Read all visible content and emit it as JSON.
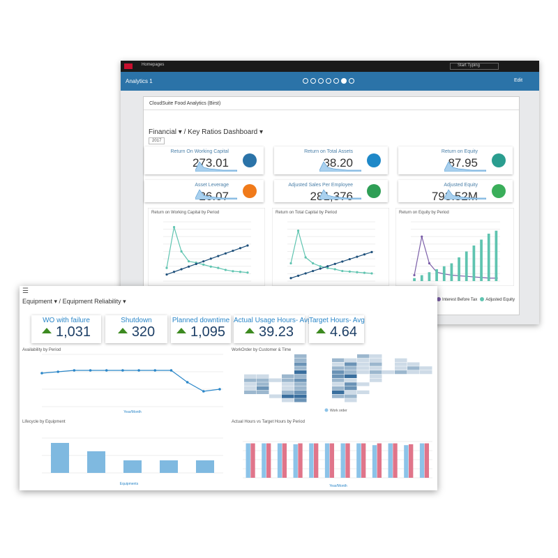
{
  "back": {
    "topbar": {
      "home": "Homepages",
      "search": "Start Typing"
    },
    "tab": {
      "title": "Analytics 1",
      "edit": "Edit"
    },
    "card": {
      "title": "CloudSuite Food Analytics (Birst)",
      "breadcrumb": [
        "Financial",
        "Key Ratios Dashboard"
      ],
      "year": "2017",
      "kpis": [
        {
          "label": "Return On Working Capital",
          "value": "273.01",
          "color": "#2b73a8"
        },
        {
          "label": "Return on Total Assets",
          "value": "38.20",
          "color": "#1e88c8"
        },
        {
          "label": "Return on Equity",
          "value": "87.95",
          "color": "#2a9d8f"
        },
        {
          "label": "Asset Leverage",
          "value": "26.07",
          "color": "#f07a1a"
        },
        {
          "label": "Adjusted Sales Per Employee",
          "value": "281,376",
          "color": "#2e9e55"
        },
        {
          "label": "Adjusted Equity",
          "value": "793.52M",
          "color": "#3aae5a"
        }
      ],
      "charts": [
        {
          "title": "Return on Working Capital by Period",
          "ylim": [
            0,
            90
          ],
          "series": [
            {
              "color": "#5fc4b0",
              "values": [
                20,
                82,
                45,
                30,
                28,
                25,
                22,
                20,
                17,
                15,
                14,
                13
              ]
            },
            {
              "color": "#1d4f7a",
              "values": [
                10,
                14,
                18,
                22,
                26,
                30,
                34,
                38,
                42,
                46,
                50,
                54
              ]
            }
          ]
        },
        {
          "title": "Return on Total Capital by Period",
          "ylim": [
            0,
            100
          ],
          "series": [
            {
              "color": "#5fc4b0",
              "values": [
                30,
                85,
                40,
                30,
                25,
                22,
                20,
                17,
                16,
                15,
                14,
                13
              ]
            },
            {
              "color": "#1d4f7a",
              "values": [
                5,
                9,
                13,
                17,
                21,
                25,
                29,
                33,
                37,
                41,
                45,
                49
              ]
            }
          ]
        },
        {
          "title": "Return on Equity by Period",
          "ylim": [
            0,
            100
          ],
          "series": [
            {
              "name": "Interest Before Tax",
              "kind": "line",
              "color": "#7b5ea8",
              "values": [
                10,
                75,
                30,
                15,
                12,
                10,
                9,
                8,
                7,
                6,
                5,
                5
              ]
            },
            {
              "name": "Adjusted Equity",
              "kind": "bar",
              "color": "#5fc4b0",
              "values": [
                5,
                10,
                15,
                20,
                25,
                30,
                40,
                50,
                60,
                70,
                80,
                85
              ]
            }
          ]
        }
      ]
    }
  },
  "front": {
    "breadcrumb": [
      "Equipment",
      "Equipment Reliability"
    ],
    "kpis": [
      {
        "label": "WO with failure",
        "value": "1,031"
      },
      {
        "label": "Shutdown",
        "value": "320"
      },
      {
        "label": "Planned downtime",
        "value": "1,095"
      },
      {
        "label": "Actual Usage Hours- Avg",
        "value": "39.23"
      },
      {
        "label": "Target Hours- Avg",
        "value": "4.64"
      }
    ],
    "availability": {
      "title": "Availability by Period",
      "x_label": "Year/Month",
      "ylim": [
        0,
        150
      ],
      "color": "#2a86c8",
      "values": [
        96,
        100,
        104,
        104,
        104,
        104,
        104,
        104,
        104,
        70,
        44,
        50
      ]
    },
    "heatmap": {
      "title": "WorkOrder by Customer & Time",
      "legend": "Work order",
      "color": "#3a6f9e",
      "max": 4,
      "values": [
        [
          0,
          0,
          0,
          0,
          2,
          0,
          0,
          0,
          0,
          2,
          1,
          0,
          0,
          0,
          0
        ],
        [
          0,
          0,
          0,
          0,
          2,
          0,
          0,
          2,
          1,
          1,
          1,
          0,
          1,
          0,
          0
        ],
        [
          0,
          0,
          0,
          0,
          3,
          0,
          0,
          1,
          3,
          1,
          2,
          0,
          1,
          1,
          0
        ],
        [
          0,
          0,
          0,
          0,
          2,
          0,
          0,
          2,
          2,
          1,
          1,
          0,
          1,
          2,
          1
        ],
        [
          0,
          0,
          0,
          0,
          4,
          0,
          0,
          3,
          2,
          1,
          2,
          1,
          2,
          1,
          1
        ],
        [
          1,
          1,
          0,
          2,
          2,
          0,
          0,
          3,
          4,
          0,
          1,
          0,
          0,
          0,
          0
        ],
        [
          2,
          2,
          1,
          2,
          3,
          0,
          0,
          2,
          1,
          0,
          1,
          0,
          0,
          0,
          0
        ],
        [
          1,
          2,
          0,
          1,
          2,
          0,
          0,
          1,
          3,
          1,
          0,
          0,
          0,
          0,
          0
        ],
        [
          1,
          3,
          0,
          1,
          2,
          0,
          0,
          2,
          3,
          0,
          0,
          0,
          0,
          0,
          0
        ],
        [
          2,
          2,
          0,
          2,
          3,
          0,
          0,
          4,
          1,
          1,
          0,
          0,
          0,
          0,
          0
        ],
        [
          0,
          0,
          1,
          4,
          4,
          0,
          0,
          2,
          2,
          0,
          0,
          0,
          0,
          0,
          0
        ],
        [
          0,
          0,
          0,
          1,
          3,
          0,
          0,
          0,
          1,
          0,
          0,
          0,
          0,
          0,
          0
        ]
      ]
    },
    "lifecycle": {
      "title": "Lifecycle by Equipment",
      "x_label": "Equipments",
      "ylim": [
        0,
        50
      ],
      "color": "#7fb9e0",
      "values": [
        43,
        31,
        18,
        18,
        18
      ]
    },
    "actual_target": {
      "title": "Actual Hours vs Target Hours by Period",
      "x_label": "Year/Month",
      "ylim": [
        0,
        40
      ],
      "series": [
        {
          "color": "#8cc3e8",
          "values": [
            38,
            38,
            38,
            37,
            38,
            38,
            38,
            38,
            36,
            38,
            36,
            38
          ]
        },
        {
          "color": "#e0758a",
          "values": [
            38,
            38,
            38,
            38,
            38,
            38,
            38,
            38,
            38,
            38,
            37,
            38
          ]
        }
      ]
    }
  }
}
